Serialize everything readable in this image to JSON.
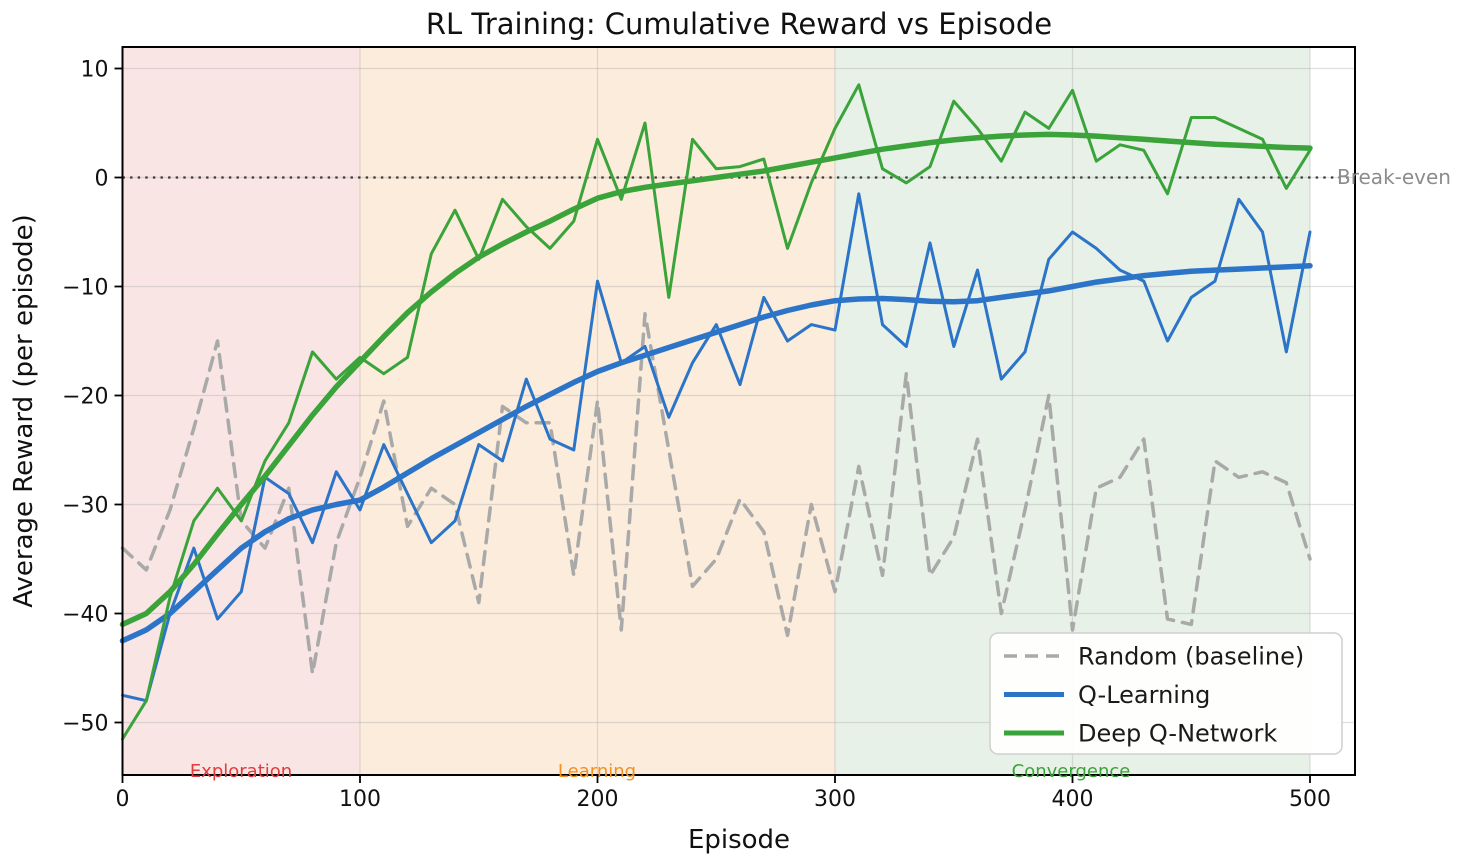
{
  "chart_data": {
    "type": "line",
    "title": "RL Training: Cumulative Reward vs Episode",
    "xlabel": "Episode",
    "ylabel": "Average Reward (per episode)",
    "grid": true,
    "xlim": [
      0,
      519
    ],
    "ylim": [
      -54.8,
      12.0
    ],
    "x_ticks": {
      "values": [
        0,
        100,
        200,
        300,
        400,
        500
      ],
      "labels": [
        "0",
        "100",
        "200",
        "300",
        "400",
        "500"
      ]
    },
    "y_ticks": {
      "values": [
        10,
        0,
        -10,
        -20,
        -30,
        -40,
        -50
      ],
      "labels": [
        "10",
        "0",
        "−10",
        "−20",
        "−30",
        "−40",
        "−50"
      ]
    },
    "x": [
      0,
      10,
      20,
      30,
      40,
      50,
      60,
      70,
      80,
      90,
      100,
      110,
      120,
      130,
      140,
      150,
      160,
      170,
      180,
      190,
      200,
      210,
      220,
      230,
      240,
      250,
      260,
      270,
      280,
      290,
      300,
      310,
      320,
      330,
      340,
      350,
      360,
      370,
      380,
      390,
      400,
      410,
      420,
      430,
      440,
      450,
      460,
      470,
      480,
      490,
      500
    ],
    "series": [
      {
        "name": "Random (baseline)",
        "role": "raw",
        "color": "#a9a9a9",
        "style": "dashed",
        "width": 3.5,
        "values": [
          -34,
          -36,
          -30.5,
          -23,
          -15,
          -31.5,
          -34,
          -28.5,
          -45.5,
          -33.5,
          -27.5,
          -20.5,
          -32,
          -28.5,
          -30,
          -39,
          -21,
          -22.5,
          -22.5,
          -36.5,
          -20.5,
          -41.5,
          -12.5,
          -25,
          -37.5,
          -35,
          -29.5,
          -32.5,
          -42,
          -30,
          -38,
          -26.5,
          -36.5,
          -18,
          -36.5,
          -33,
          -24,
          -40,
          -30.5,
          -20,
          -41.5,
          -28.5,
          -27.5,
          -24,
          -40.5,
          -41,
          -26,
          -27.5,
          -27,
          -28,
          -35
        ]
      },
      {
        "name": "Q-Learning (per episode)",
        "role": "raw",
        "color": "#2b74c8",
        "style": "solid",
        "width": 3,
        "values": [
          -47.5,
          -48,
          -40,
          -34,
          -40.5,
          -38,
          -27.5,
          -29,
          -33.5,
          -27,
          -30.5,
          -24.5,
          -29,
          -33.5,
          -31.5,
          -24.5,
          -26,
          -18.5,
          -24,
          -25,
          -9.5,
          -17,
          -15.5,
          -22,
          -17,
          -13.5,
          -19,
          -11,
          -15,
          -13.5,
          -14,
          -1.5,
          -13.5,
          -15.5,
          -6,
          -15.5,
          -8.5,
          -18.5,
          -16,
          -7.5,
          -5,
          -6.5,
          -8.5,
          -9.5,
          -15,
          -11,
          -9.5,
          -2,
          -5,
          -16,
          -5
        ]
      },
      {
        "name": "Q-Learning (trend)",
        "role": "trend",
        "color": "#2b74c8",
        "style": "solid",
        "width": 5.5,
        "values": [
          -42.5,
          -41.5,
          -40,
          -38,
          -36,
          -34,
          -32.5,
          -31.3,
          -30.5,
          -30,
          -29.6,
          -28.4,
          -27.1,
          -25.8,
          -24.6,
          -23.4,
          -22.2,
          -21,
          -19.9,
          -18.8,
          -17.8,
          -17,
          -16.3,
          -15.6,
          -14.9,
          -14.2,
          -13.5,
          -12.8,
          -12.2,
          -11.7,
          -11.3,
          -11.15,
          -11.1,
          -11.2,
          -11.35,
          -11.4,
          -11.3,
          -11,
          -10.7,
          -10.4,
          -10,
          -9.6,
          -9.3,
          -9,
          -8.8,
          -8.6,
          -8.5,
          -8.4,
          -8.3,
          -8.2,
          -8.1
        ]
      },
      {
        "name": "Deep Q-Network (per episode)",
        "role": "raw",
        "color": "#3aa33a",
        "style": "solid",
        "width": 3,
        "values": [
          -51.5,
          -48,
          -38.5,
          -31.5,
          -28.5,
          -31.5,
          -26,
          -22.5,
          -16,
          -18.5,
          -16.5,
          -18,
          -16.5,
          -7,
          -3,
          -7.5,
          -2,
          -4.5,
          -6.5,
          -4,
          3.5,
          -2,
          5,
          -11,
          3.5,
          0.8,
          1,
          1.7,
          -6.5,
          -0.5,
          4.5,
          8.5,
          0.8,
          -0.5,
          1,
          7,
          4.5,
          1.5,
          6,
          4.5,
          8,
          1.5,
          3,
          2.5,
          -1.5,
          5.5,
          5.5,
          4.5,
          3.5,
          -1,
          2.5
        ]
      },
      {
        "name": "Deep Q-Network (trend)",
        "role": "trend",
        "color": "#3aa33a",
        "style": "solid",
        "width": 5.5,
        "values": [
          -41,
          -40,
          -38,
          -35.5,
          -32.7,
          -30,
          -27.4,
          -24.6,
          -21.8,
          -19.2,
          -16.9,
          -14.6,
          -12.4,
          -10.5,
          -8.8,
          -7.3,
          -6.1,
          -5,
          -4,
          -2.9,
          -1.9,
          -1.3,
          -0.9,
          -0.6,
          -0.3,
          0,
          0.3,
          0.6,
          1,
          1.4,
          1.8,
          2.2,
          2.6,
          2.9,
          3.2,
          3.45,
          3.65,
          3.8,
          3.9,
          3.95,
          3.9,
          3.8,
          3.65,
          3.5,
          3.35,
          3.2,
          3.05,
          2.95,
          2.85,
          2.75,
          2.7
        ]
      }
    ],
    "regions": [
      {
        "label": "Exploration",
        "from": 0,
        "to": 100,
        "fill": "#f9e5e4",
        "label_color": "#e23b3b"
      },
      {
        "label": "Learning",
        "from": 100,
        "to": 300,
        "fill": "#fcecdb",
        "label_color": "#f5901e"
      },
      {
        "label": "Convergence",
        "from": 300,
        "to": 500,
        "fill": "#e8f1e7",
        "label_color": "#3aa33a"
      }
    ],
    "breakeven": {
      "label": "Break-even",
      "y": 0,
      "text_color": "#8c8c8c",
      "line_color": "#3a3a3a"
    },
    "legend": {
      "position": "lower right",
      "items": [
        {
          "label": "Random (baseline)",
          "color": "#a9a9a9",
          "dashed": true
        },
        {
          "label": "Q-Learning",
          "color": "#2b74c8",
          "dashed": false
        },
        {
          "label": "Deep Q-Network",
          "color": "#3aa33a",
          "dashed": false
        }
      ]
    }
  }
}
